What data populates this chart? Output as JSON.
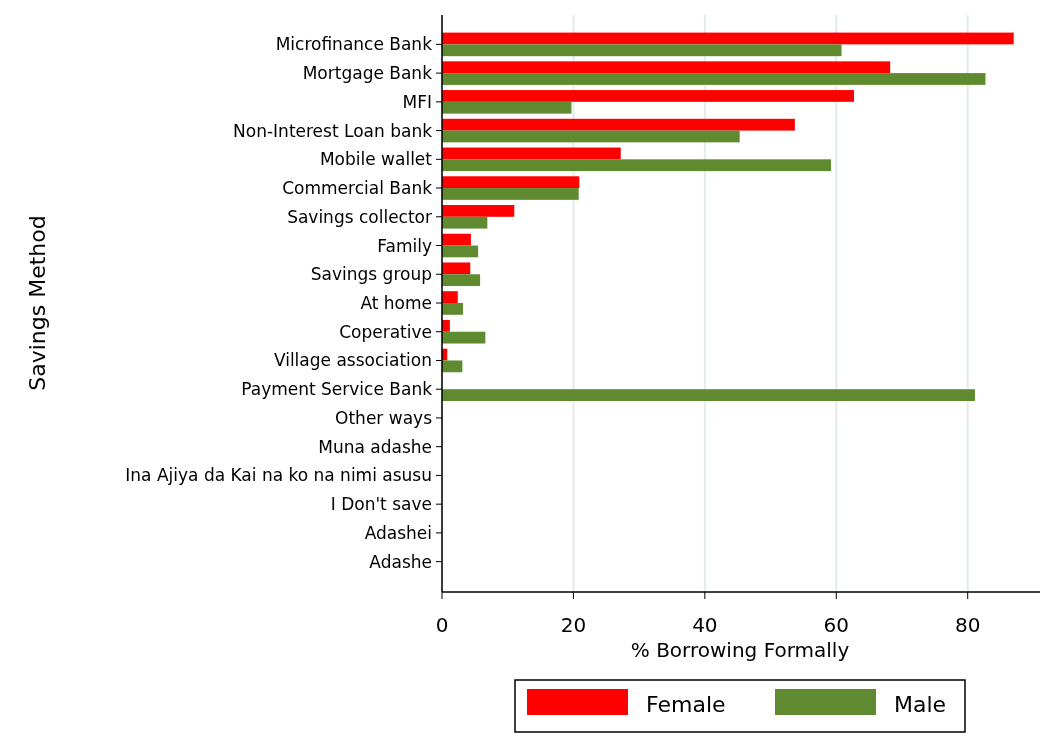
{
  "chart_data": {
    "type": "bar",
    "orientation": "horizontal",
    "ylabel": "Savings Method",
    "xlabel": "% Borrowing Formally",
    "categories": [
      "Microfinance Bank",
      "Mortgage Bank",
      "MFI",
      "Non-Interest Loan bank",
      "Mobile wallet",
      "Commercial Bank",
      "Savings collector",
      "Family",
      "Savings group",
      "At home",
      "Coperative",
      "Village association",
      "Payment Service Bank",
      "Other ways",
      "Muna adashe",
      "Ina Ajiya da Kai na ko na nimi asusu",
      "I Don't save",
      "Adashei",
      "Adashe"
    ],
    "series": [
      {
        "name": "Female",
        "color": "#ff0000",
        "values": [
          87.0,
          68.2,
          62.7,
          53.7,
          27.2,
          20.9,
          11.0,
          4.4,
          4.3,
          2.4,
          1.2,
          0.8,
          null,
          null,
          null,
          null,
          null,
          null,
          null
        ]
      },
      {
        "name": "Male",
        "color": "#5f8a30",
        "values": [
          60.8,
          82.7,
          19.7,
          45.3,
          59.2,
          20.8,
          6.9,
          5.5,
          5.8,
          3.2,
          6.6,
          3.1,
          81.1,
          null,
          null,
          null,
          null,
          null,
          null
        ]
      }
    ],
    "xlim": [
      0,
      91
    ],
    "xticks": [
      0,
      20,
      40,
      60,
      80
    ],
    "grid": "x",
    "legend": "bottom"
  }
}
